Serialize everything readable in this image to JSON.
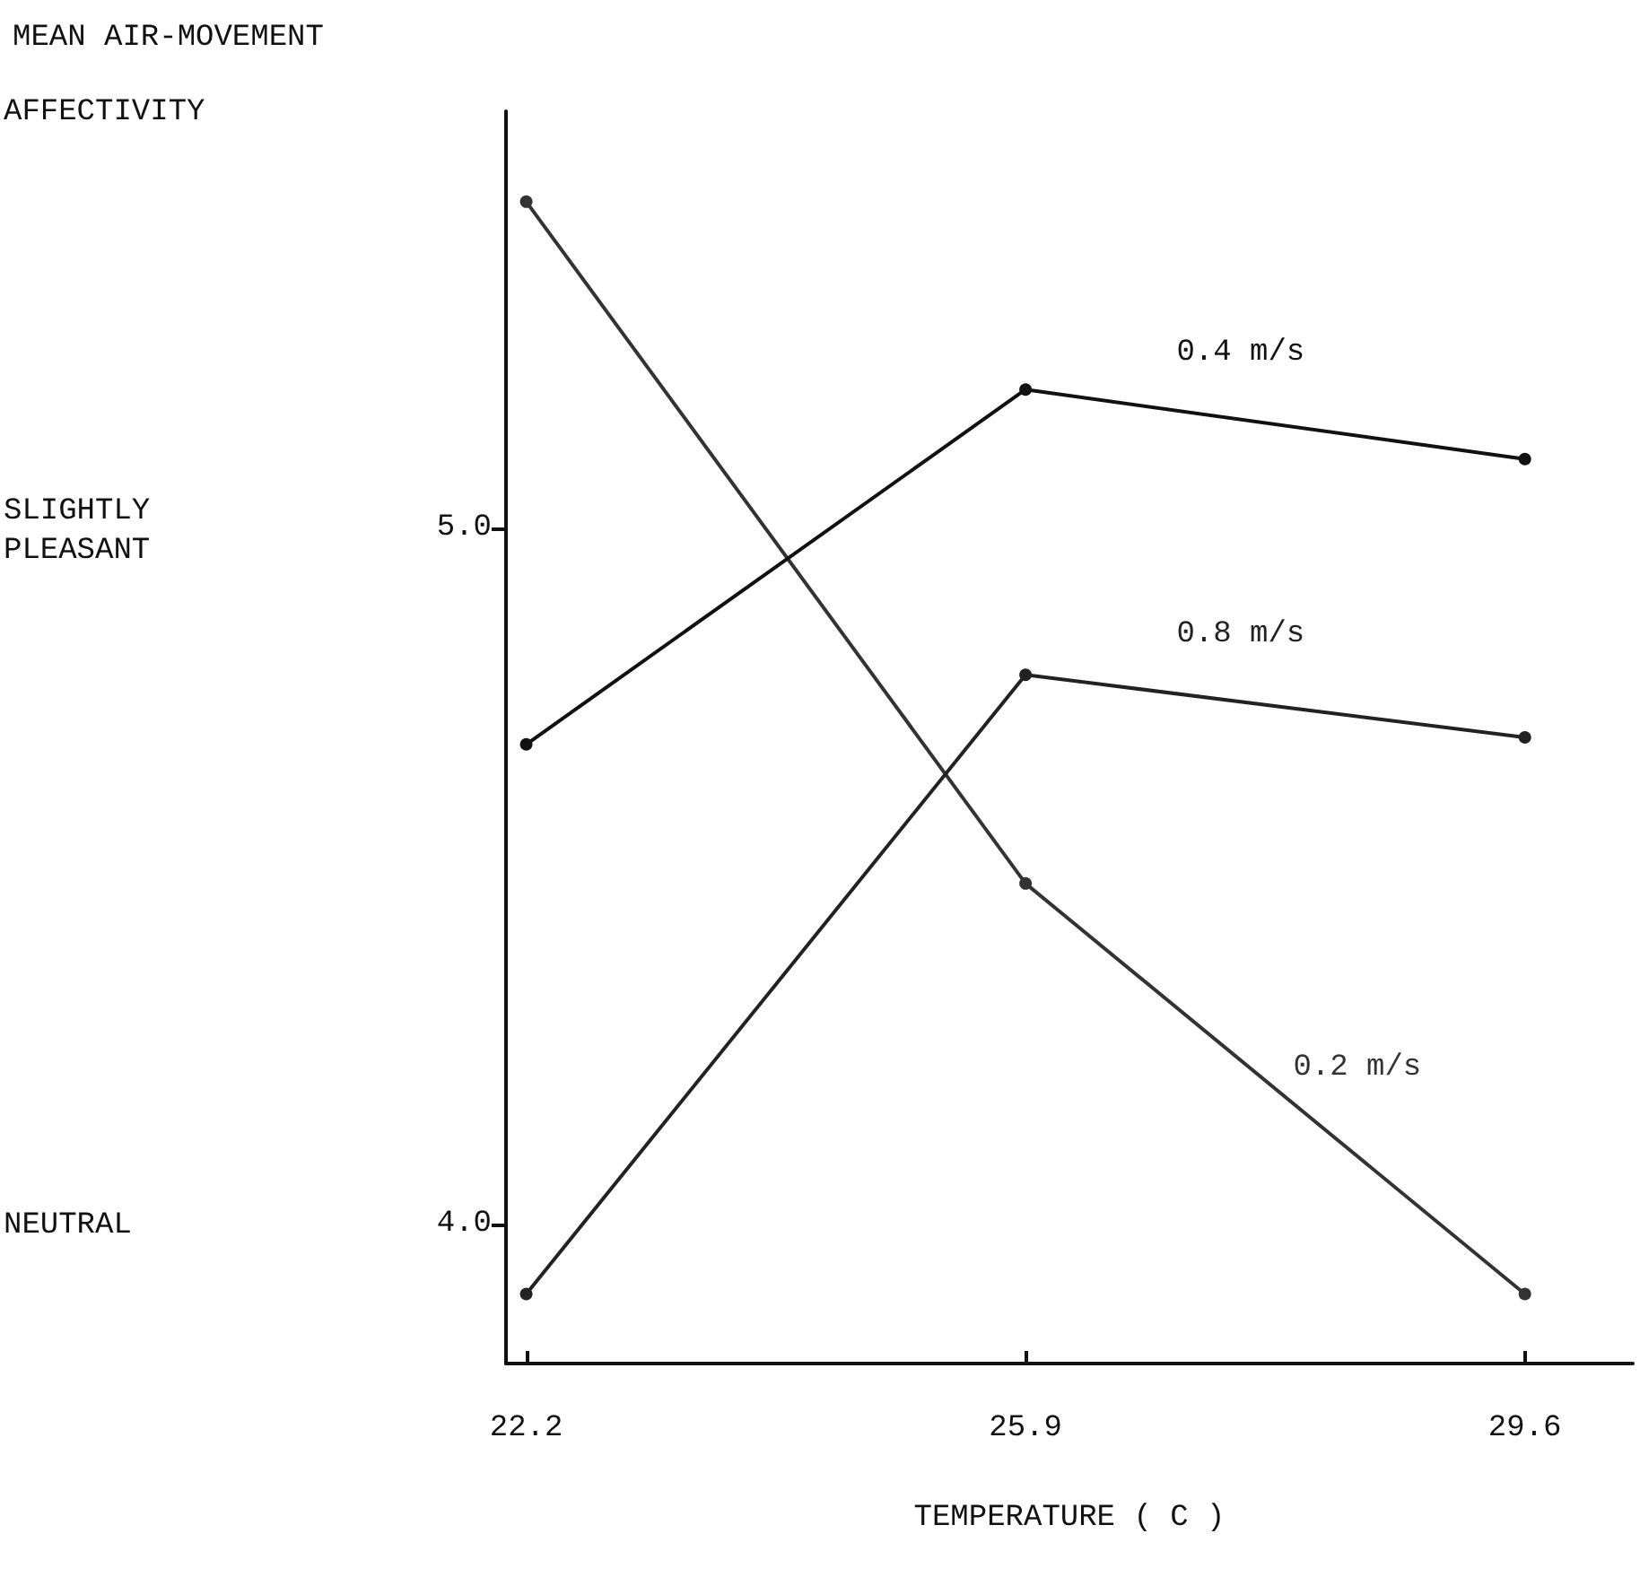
{
  "chart_data": {
    "type": "line",
    "title": "MEAN AIR-MOVEMENT",
    "xlabel": "TEMPERATURE ( C )",
    "x": [
      22.2,
      25.9,
      29.6
    ],
    "series": [
      {
        "name": "0.2 m/s",
        "color": "#333333",
        "values": [
          5.47,
          4.49,
          3.9
        ]
      },
      {
        "name": "0.4 m/s",
        "color": "#111111",
        "values": [
          4.69,
          5.2,
          5.1
        ]
      },
      {
        "name": "0.8 m/s",
        "color": "#222222",
        "values": [
          3.9,
          4.79,
          4.7
        ]
      }
    ],
    "annotations": [
      "AFFECTIVITY",
      "SLIGHTLY\nPLEASANT",
      "NEUTRAL"
    ],
    "xlim": [
      22.05,
      30.4
    ],
    "xticks": [
      22.2,
      25.9,
      29.6
    ],
    "ylim": [
      3.8,
      5.6
    ],
    "yticks": [
      {
        "value": 4,
        "label": "4.0"
      },
      {
        "value": 5,
        "label": "5.0"
      }
    ],
    "marker": "circle",
    "line_style": "solid",
    "grid": false,
    "legend": false
  }
}
